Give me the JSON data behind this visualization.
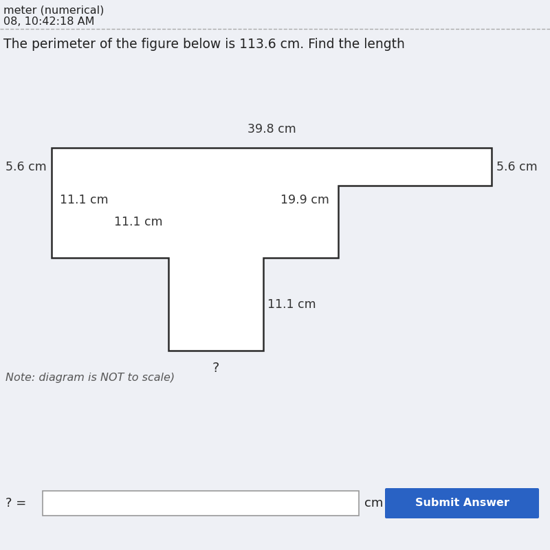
{
  "bg_color": "#eef0f5",
  "shape_facecolor": "#ffffff",
  "shape_edgecolor": "#2a2a2a",
  "shape_lw": 1.8,
  "title_text": "The perimeter of the figure below is 113.6 cm. Find the length",
  "subtitle1": "meter (numerical)",
  "subtitle2": "08, 10:42:18 AM",
  "note_text": "Note: diagram is NOT to scale)",
  "answer_label": "? =",
  "answer_unit": "cm",
  "btn_text": "Submit Answer",
  "btn_color": "#2962c4",
  "btn_text_color": "#ffffff",
  "label_top": "39.8 cm",
  "label_left": "5.6 cm",
  "label_right": "5.6 cm",
  "label_inner_left_h": "11.1 cm",
  "label_inner_left_v": "11.1 cm",
  "label_inner_right_h": "19.9 cm",
  "label_inner_right_v": "11.1 cm",
  "label_missing": "?"
}
